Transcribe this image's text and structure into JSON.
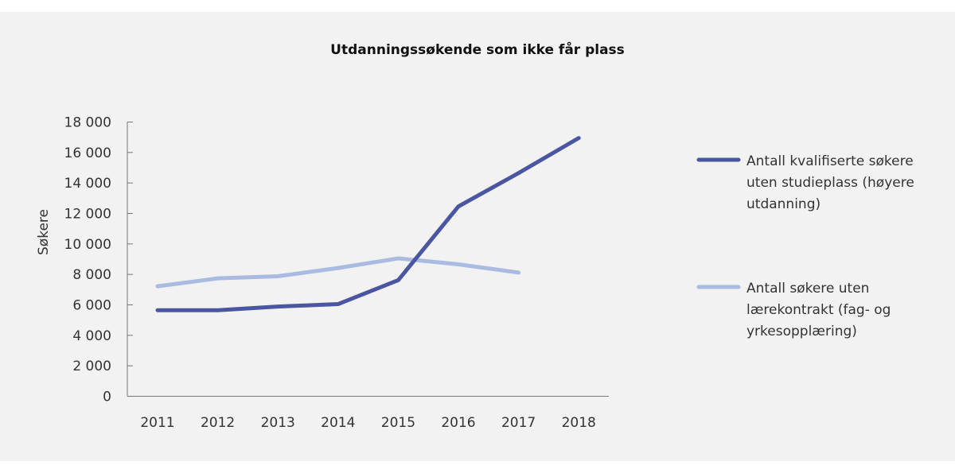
{
  "chart_data": {
    "type": "line",
    "title": "Utdanningssøkende som ikke får plass",
    "xlabel": "",
    "ylabel": "Søkere",
    "ylim": [
      0,
      18000
    ],
    "yticks": [
      0,
      2000,
      4000,
      6000,
      8000,
      10000,
      12000,
      14000,
      16000,
      18000
    ],
    "ytick_labels": [
      "0",
      "2 000",
      "4 000",
      "6 000",
      "8 000",
      "10 000",
      "12 000",
      "14 000",
      "16 000",
      "18 000"
    ],
    "categories": [
      "2011",
      "2012",
      "2013",
      "2014",
      "2015",
      "2016",
      "2017",
      "2018"
    ],
    "grid": false,
    "legend_position": "right",
    "series": [
      {
        "name": "Antall kvalifiserte søkere uten studieplass (høyere utdanning)",
        "legend_lines": [
          "Antall kvalifiserte søkere",
          "uten studieplass (høyere",
          "utdanning)"
        ],
        "color": "#4a56a0",
        "values": [
          5650,
          5650,
          5890,
          6050,
          7620,
          12460,
          14650,
          16950
        ]
      },
      {
        "name": "Antall søkere uten lærekontrakt (fag- og yrkesopplæring)",
        "legend_lines": [
          "Antall søkere uten",
          "lærekontrakt (fag- og",
          "yrkesopplæring)"
        ],
        "color": "#a9bbe0",
        "values": [
          7220,
          7740,
          7880,
          8420,
          9050,
          8660,
          8120,
          null
        ]
      }
    ]
  }
}
